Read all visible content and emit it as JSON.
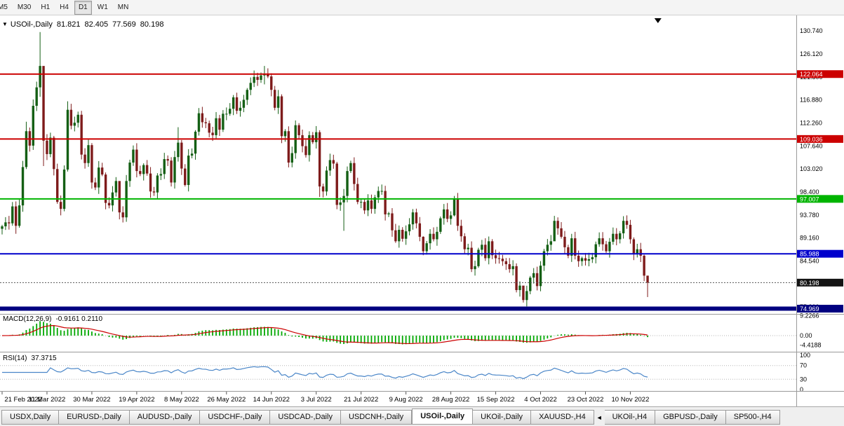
{
  "toolbar": {
    "timeframes": [
      {
        "label": "M5",
        "active": false
      },
      {
        "label": "M30",
        "active": false
      },
      {
        "label": "H1",
        "active": false
      },
      {
        "label": "H4",
        "active": false
      },
      {
        "label": "D1",
        "active": true
      },
      {
        "label": "W1",
        "active": false
      },
      {
        "label": "MN",
        "active": false
      }
    ]
  },
  "chart_header": {
    "symbol": "USOil-,Daily",
    "open": "81.821",
    "high": "82.405",
    "low": "77.569",
    "close": "80.198"
  },
  "chart_data": {
    "type": "candlestick",
    "symbol": "USOil-,Daily",
    "bull_color": "#145f14",
    "bear_color": "#7e1b1b",
    "x_axis": {
      "tick_labels": [
        "21 Feb 2022",
        "11 Mar 2022",
        "30 Mar 2022",
        "19 Apr 2022",
        "8 May 2022",
        "26 May 2022",
        "14 Jun 2022",
        "3 Jul 2022",
        "21 Jul 2022",
        "9 Aug 2022",
        "28 Aug 2022",
        "15 Sep 2022",
        "4 Oct 2022",
        "23 Oct 2022",
        "10 Nov 2022"
      ],
      "tick_indices": [
        0,
        13,
        26,
        39,
        52,
        65,
        78,
        91,
        104,
        117,
        130,
        143,
        156,
        169,
        182
      ]
    },
    "y_axis": {
      "min": 74.2,
      "max": 133.0,
      "tick_values": [
        75.3,
        79.92,
        84.54,
        89.16,
        93.78,
        98.4,
        103.02,
        107.64,
        112.26,
        116.88,
        121.5,
        126.12,
        130.74
      ],
      "tick_labels": [
        "75.300",
        "79.920",
        "84.540",
        "89.160",
        "93.780",
        "98.400",
        "103.020",
        "107.640",
        "112.260",
        "116.880",
        "121.500",
        "126.120",
        "130.740"
      ]
    },
    "first_open": 91.0,
    "closes": [
      91.5,
      92.3,
      92.1,
      95.5,
      91.6,
      95.7,
      103.4,
      110.6,
      107.7,
      115.7,
      119.4,
      123.7,
      108.7,
      106.0,
      109.3,
      103.0,
      96.4,
      95.0,
      102.9,
      114.9,
      111.7,
      112.3,
      113.9,
      105.9,
      104.2,
      107.8,
      100.3,
      99.3,
      103.3,
      101.9,
      96.2,
      95.7,
      98.3,
      100.6,
      94.3,
      93.3,
      100.6,
      104.3,
      106.9,
      102.6,
      102.0,
      103.8,
      102.1,
      98.5,
      98.3,
      101.7,
      102.0,
      105.0,
      104.7,
      100.3,
      105.4,
      108.3,
      103.1,
      99.8,
      105.7,
      106.1,
      110.5,
      114.2,
      112.4,
      112.2,
      110.3,
      109.8,
      113.2,
      110.9,
      114.1,
      114.1,
      115.1,
      117.4,
      114.7,
      115.3,
      116.9,
      118.9,
      120.3,
      121.5,
      120.9,
      121.8,
      122.0,
      121.6,
      118.9,
      115.3,
      117.6,
      109.6,
      110.6,
      104.3,
      106.2,
      111.8,
      109.8,
      107.6,
      105.8,
      109.8,
      108.4,
      110.4,
      99.5,
      98.5,
      102.7,
      104.8,
      104.1,
      95.8,
      96.3,
      97.6,
      102.6,
      104.2,
      100.0,
      96.4,
      96.4,
      94.7,
      96.7,
      95.0,
      97.3,
      98.6,
      98.6,
      93.9,
      94.1,
      90.7,
      88.5,
      90.8,
      89.0,
      90.5,
      91.9,
      94.3,
      92.1,
      89.4,
      86.5,
      88.1,
      90.0,
      88.9,
      90.4,
      93.1,
      94.9,
      93.0,
      93.7,
      97.0,
      91.6,
      89.5,
      86.9,
      87.2,
      82.9,
      83.5,
      86.8,
      87.8,
      85.1,
      88.5,
      85.7,
      85.1,
      85.0,
      84.5,
      83.9,
      82.9,
      83.5,
      78.7,
      79.6,
      76.7,
      78.5,
      81.2,
      82.1,
      79.5,
      83.6,
      86.5,
      87.8,
      88.5,
      92.6,
      91.1,
      89.4,
      87.3,
      85.6,
      89.1,
      85.6,
      84.5,
      85.1,
      84.6,
      84.9,
      85.3,
      87.9,
      89.1,
      87.9,
      86.5,
      88.4,
      90.0,
      88.9,
      90.1,
      92.6,
      91.8,
      88.9,
      85.9,
      86.9,
      85.6,
      81.6,
      80.2
    ],
    "wick_overrides": {
      "4": [
        96.5,
        90.0
      ],
      "7": [
        112.5,
        103.0
      ],
      "11": [
        130.5,
        117.5
      ],
      "12": [
        120.0,
        103.6
      ],
      "19": [
        116.6,
        102.5
      ],
      "34": [
        98.0,
        92.9
      ],
      "51": [
        111.4,
        104.5
      ],
      "76": [
        123.7,
        120.0
      ],
      "81": [
        118.0,
        108.2
      ],
      "92": [
        110.8,
        97.4
      ],
      "99": [
        99.0,
        90.6
      ],
      "122": [
        89.5,
        85.7
      ],
      "131": [
        97.6,
        93.5
      ],
      "151": [
        78.8,
        76.2
      ],
      "160": [
        93.6,
        89.9
      ],
      "181": [
        93.7,
        91.0
      ],
      "186": [
        85.8,
        80.5
      ],
      "187": [
        81.3,
        77.3
      ]
    },
    "levels": [
      {
        "value": 122.064,
        "label": "122.064",
        "color": "#cc0000",
        "thickness": 2
      },
      {
        "value": 109.036,
        "label": "109.036",
        "color": "#cc0000",
        "thickness": 2
      },
      {
        "value": 97.007,
        "label": "97.007",
        "color": "#00b400",
        "thickness": 2
      },
      {
        "value": 85.988,
        "label": "85.988",
        "color": "#0000cc",
        "thickness": 2
      },
      {
        "value": 74.969,
        "label": "74.969",
        "color": "#000080",
        "thickness": 6
      }
    ],
    "current_price": {
      "value": 80.198,
      "label": "80.198",
      "color": "#141414"
    },
    "shift_marker_index": 190,
    "macd": {
      "label": "MACD(12,26,9)",
      "values": "-0.9161 0.2110",
      "fast": 12,
      "slow": 26,
      "signal": 9,
      "hist_color": "#00a800",
      "signal_color": "#cc0000",
      "axis_labels": [
        {
          "value": 9.2266,
          "text": "9.2266"
        },
        {
          "value": 0,
          "text": "0.00"
        },
        {
          "value": -4.4188,
          "text": "-4.4188"
        }
      ]
    },
    "rsi": {
      "label": "RSI(14)",
      "value": "37.3715",
      "period": 14,
      "color": "#4a86c8",
      "levels": [
        70,
        30
      ],
      "axis_labels": [
        {
          "value": 100,
          "text": "100"
        },
        {
          "value": 70,
          "text": "70"
        },
        {
          "value": 30,
          "text": "30"
        },
        {
          "value": 0,
          "text": "0"
        }
      ]
    }
  },
  "tabs": {
    "items": [
      {
        "label": "USDX,Daily",
        "active": false
      },
      {
        "label": "EURUSD-,Daily",
        "active": false
      },
      {
        "label": "AUDUSD-,Daily",
        "active": false
      },
      {
        "label": "USDCHF-,Daily",
        "active": false
      },
      {
        "label": "USDCAD-,Daily",
        "active": false
      },
      {
        "label": "USDCNH-,Daily",
        "active": false
      },
      {
        "label": "USOil-,Daily",
        "active": true
      },
      {
        "label": "UKOil-,Daily",
        "active": false
      },
      {
        "label": "XAUUSD-,H4",
        "active": false
      },
      {
        "label": "UKOil-,H4",
        "active": false,
        "pre_icon": true
      },
      {
        "label": "GBPUSD-,Daily",
        "active": false
      },
      {
        "label": "SP500-,H4",
        "active": false
      }
    ]
  }
}
